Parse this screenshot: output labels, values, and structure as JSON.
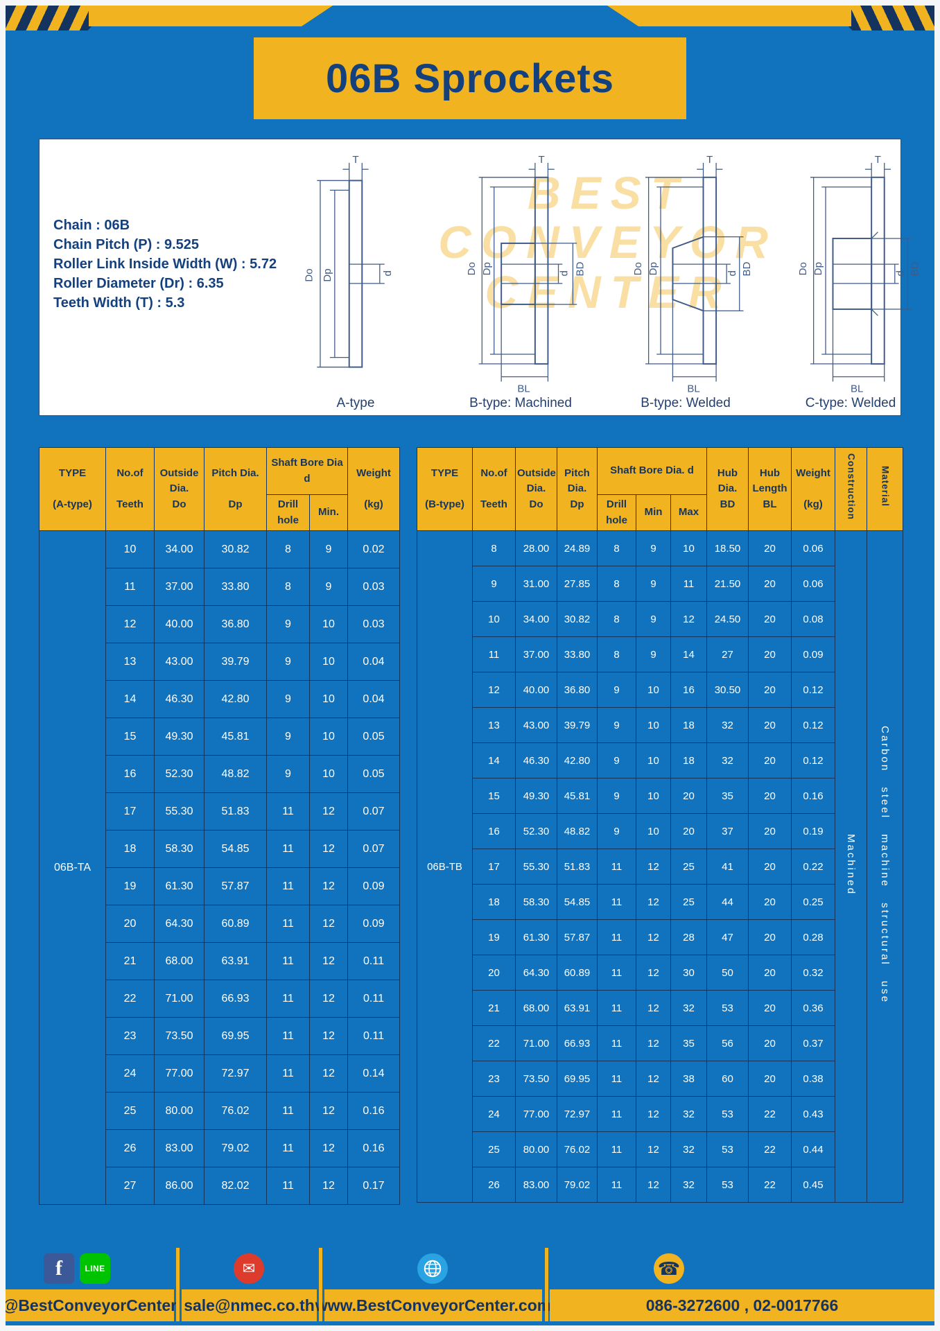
{
  "page": {
    "title": "06B Sprockets"
  },
  "theme": {
    "background_blue": "#1173bd",
    "accent_yellow": "#f1b320",
    "navy": "#15335f"
  },
  "specs": [
    "Chain : 06B",
    "Chain Pitch (P) : 9.525",
    "Roller Link Inside Width (W) : 5.72",
    "Roller Diameter (Dr) : 6.35",
    "Teeth Width (T) : 5.3"
  ],
  "watermark": [
    "BEST",
    "CONVEYOR",
    "CENTER"
  ],
  "drawings": {
    "dims": {
      "t": "T",
      "outer": "Do",
      "pitch": "Dp",
      "bore": "d",
      "hub_dia": "BD",
      "hub_len": "BL"
    },
    "captions": [
      "A-type",
      "B-type: Machined",
      "B-type: Welded",
      "C-type: Welded"
    ]
  },
  "tables": {
    "a": {
      "header": {
        "type": "TYPE\n\n(A-type)",
        "teeth": "No.of\n\nTeeth",
        "outside": "Outside\nDia.\nDo",
        "pitch": "Pitch Dia.\n\nDp",
        "bore_group": "Shaft Bore Dia d",
        "drill": "Drill hole",
        "min": "Min.",
        "weight": "Weight\n\n(kg)"
      },
      "type_value": "06B-TA",
      "rows": [
        [
          "10",
          "34.00",
          "30.82",
          "8",
          "9",
          "0.02"
        ],
        [
          "11",
          "37.00",
          "33.80",
          "8",
          "9",
          "0.03"
        ],
        [
          "12",
          "40.00",
          "36.80",
          "9",
          "10",
          "0.03"
        ],
        [
          "13",
          "43.00",
          "39.79",
          "9",
          "10",
          "0.04"
        ],
        [
          "14",
          "46.30",
          "42.80",
          "9",
          "10",
          "0.04"
        ],
        [
          "15",
          "49.30",
          "45.81",
          "9",
          "10",
          "0.05"
        ],
        [
          "16",
          "52.30",
          "48.82",
          "9",
          "10",
          "0.05"
        ],
        [
          "17",
          "55.30",
          "51.83",
          "11",
          "12",
          "0.07"
        ],
        [
          "18",
          "58.30",
          "54.85",
          "11",
          "12",
          "0.07"
        ],
        [
          "19",
          "61.30",
          "57.87",
          "11",
          "12",
          "0.09"
        ],
        [
          "20",
          "64.30",
          "60.89",
          "11",
          "12",
          "0.09"
        ],
        [
          "21",
          "68.00",
          "63.91",
          "11",
          "12",
          "0.11"
        ],
        [
          "22",
          "71.00",
          "66.93",
          "11",
          "12",
          "0.11"
        ],
        [
          "23",
          "73.50",
          "69.95",
          "11",
          "12",
          "0.11"
        ],
        [
          "24",
          "77.00",
          "72.97",
          "11",
          "12",
          "0.14"
        ],
        [
          "25",
          "80.00",
          "76.02",
          "11",
          "12",
          "0.16"
        ],
        [
          "26",
          "83.00",
          "79.02",
          "11",
          "12",
          "0.16"
        ],
        [
          "27",
          "86.00",
          "82.02",
          "11",
          "12",
          "0.17"
        ]
      ]
    },
    "b": {
      "header": {
        "type": "TYPE\n\n(B-type)",
        "teeth": "No.of\n\nTeeth",
        "outside": "Outside\nDia.\nDo",
        "pitch": "Pitch\nDia.\nDp",
        "bore_group": "Shaft Bore Dia. d",
        "drill": "Drill hole",
        "min": "Min",
        "max": "Max",
        "hub_dia": "Hub\nDia.\nBD",
        "hub_len": "Hub\nLength\nBL",
        "weight": "Weight\n\n(kg)",
        "construction": "Construction",
        "material": "Material"
      },
      "type_value": "06B-TB",
      "construction_value": "Machined",
      "material_value": "Carbon steel machine structural use",
      "rows": [
        [
          "8",
          "28.00",
          "24.89",
          "8",
          "9",
          "10",
          "18.50",
          "20",
          "0.06"
        ],
        [
          "9",
          "31.00",
          "27.85",
          "8",
          "9",
          "11",
          "21.50",
          "20",
          "0.06"
        ],
        [
          "10",
          "34.00",
          "30.82",
          "8",
          "9",
          "12",
          "24.50",
          "20",
          "0.08"
        ],
        [
          "11",
          "37.00",
          "33.80",
          "8",
          "9",
          "14",
          "27",
          "20",
          "0.09"
        ],
        [
          "12",
          "40.00",
          "36.80",
          "9",
          "10",
          "16",
          "30.50",
          "20",
          "0.12"
        ],
        [
          "13",
          "43.00",
          "39.79",
          "9",
          "10",
          "18",
          "32",
          "20",
          "0.12"
        ],
        [
          "14",
          "46.30",
          "42.80",
          "9",
          "10",
          "18",
          "32",
          "20",
          "0.12"
        ],
        [
          "15",
          "49.30",
          "45.81",
          "9",
          "10",
          "20",
          "35",
          "20",
          "0.16"
        ],
        [
          "16",
          "52.30",
          "48.82",
          "9",
          "10",
          "20",
          "37",
          "20",
          "0.19"
        ],
        [
          "17",
          "55.30",
          "51.83",
          "11",
          "12",
          "25",
          "41",
          "20",
          "0.22"
        ],
        [
          "18",
          "58.30",
          "54.85",
          "11",
          "12",
          "25",
          "44",
          "20",
          "0.25"
        ],
        [
          "19",
          "61.30",
          "57.87",
          "11",
          "12",
          "28",
          "47",
          "20",
          "0.28"
        ],
        [
          "20",
          "64.30",
          "60.89",
          "11",
          "12",
          "30",
          "50",
          "20",
          "0.32"
        ],
        [
          "21",
          "68.00",
          "63.91",
          "11",
          "12",
          "32",
          "53",
          "20",
          "0.36"
        ],
        [
          "22",
          "71.00",
          "66.93",
          "11",
          "12",
          "35",
          "56",
          "20",
          "0.37"
        ],
        [
          "23",
          "73.50",
          "69.95",
          "11",
          "12",
          "38",
          "60",
          "20",
          "0.38"
        ],
        [
          "24",
          "77.00",
          "72.97",
          "11",
          "12",
          "32",
          "53",
          "22",
          "0.43"
        ],
        [
          "25",
          "80.00",
          "76.02",
          "11",
          "12",
          "32",
          "53",
          "22",
          "0.44"
        ],
        [
          "26",
          "83.00",
          "79.02",
          "11",
          "12",
          "32",
          "53",
          "22",
          "0.45"
        ]
      ]
    }
  },
  "footer": {
    "icons": {
      "facebook": "f",
      "line": "LINE",
      "mail": "✉",
      "phone": "☎"
    },
    "facebook_handle": "@BestConveyorCenter",
    "email": "sale@nmec.co.th",
    "website": "www.BestConveyorCenter.com",
    "phone_numbers": "086-3272600 , 02-0017766"
  }
}
